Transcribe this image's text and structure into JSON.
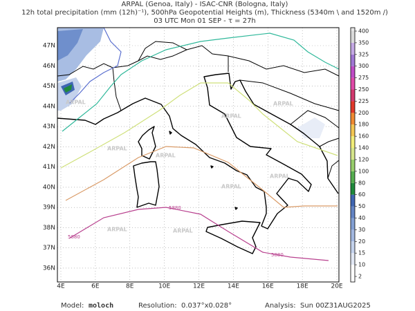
{
  "header": {
    "lines": [
      "ARPAL (Genoa, Italy)  -  ISAC-CNR (Bologna, Italy)",
      "12h total precipitation (mm (12h)⁻¹), 500hPa Geopotential Heights (m), Thickness (5340m \\ and 1520m /)",
      "03 UTC Mon 01 SEP  -  τ = 27h"
    ]
  },
  "map": {
    "lon_labels": [
      "4E",
      "6E",
      "8E",
      "10E",
      "12E",
      "14E",
      "16E",
      "18E",
      "20E"
    ],
    "lat_labels": [
      "47N",
      "46N",
      "45N",
      "44N",
      "43N",
      "42N",
      "41N",
      "40N",
      "39N",
      "38N",
      "37N",
      "36N"
    ],
    "contour_labels": [
      "5880",
      "5880",
      "5880"
    ],
    "watermark": "ARPAL"
  },
  "colorbar": {
    "levels": [
      "2",
      "10",
      "15",
      "20",
      "30",
      "40",
      "50",
      "60",
      "80",
      "100",
      "120",
      "140",
      "160",
      "180",
      "200",
      "225",
      "250",
      "275",
      "300",
      "325",
      "350",
      "400"
    ],
    "colors": [
      "#ffffff",
      "#e2e8f4",
      "#c4d2ec",
      "#a3b8e0",
      "#839fd3",
      "#6384c4",
      "#3f66b2",
      "#1f8a3c",
      "#55ad4f",
      "#98cd6c",
      "#d6e68c",
      "#f2ee7a",
      "#f3c653",
      "#f08a32",
      "#e0382a",
      "#d23a6e",
      "#e04aa8",
      "#c04cc6",
      "#a077d4",
      "#c4a8e4",
      "#dadada"
    ]
  },
  "footer": {
    "model_label": "Model:",
    "model": "moloch",
    "resolution_label": "Resolution:",
    "resolution": "0.037°x0.028°",
    "analysis_label": "Analysis:",
    "analysis": "Sun 00Z31AUG2025"
  }
}
